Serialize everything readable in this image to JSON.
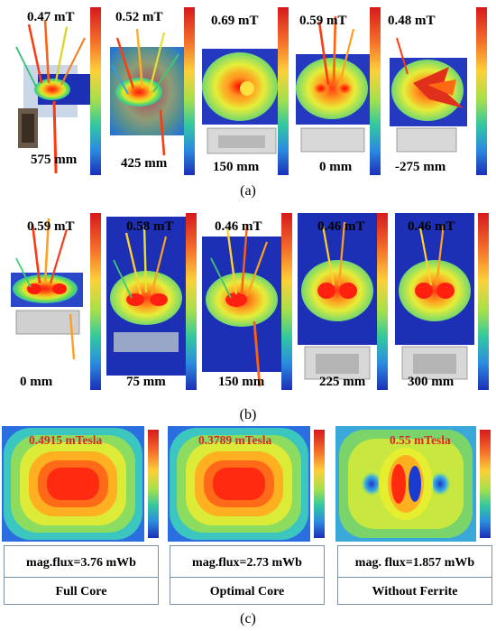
{
  "row_a": {
    "caption": "(a)",
    "panels": [
      {
        "peak": "0.47 mT",
        "distance": "575 mm"
      },
      {
        "peak": "0.52 mT",
        "distance": "425 mm"
      },
      {
        "peak": "0.69 mT",
        "distance": "150 mm"
      },
      {
        "peak": "0.59 mT",
        "distance": "0 mm"
      },
      {
        "peak": "0.48 mT",
        "distance": "-275 mm"
      }
    ]
  },
  "row_b": {
    "caption": "(b)",
    "panels": [
      {
        "peak": "0.59 mT",
        "distance": "0 mm"
      },
      {
        "peak": "0.58 mT",
        "distance": "75 mm"
      },
      {
        "peak": "0.46 mT",
        "distance": "150 mm"
      },
      {
        "peak": "0.46 mT",
        "distance": "225 mm"
      },
      {
        "peak": "0.46 mT",
        "distance": "300 mm"
      }
    ]
  },
  "row_c": {
    "caption": "(c)",
    "panels": [
      {
        "peak": "0.4915 mTesla",
        "flux": "mag.flux=3.76 mWb",
        "core": "Full Core"
      },
      {
        "peak": "0.3789 mTesla",
        "flux": "mag.flux=2.73 mWb",
        "core": "Optimal Core"
      },
      {
        "peak": "0.55 mTesla",
        "flux": "mag. flux=1.857 mWb",
        "core": "Without Ferrite"
      }
    ]
  }
}
